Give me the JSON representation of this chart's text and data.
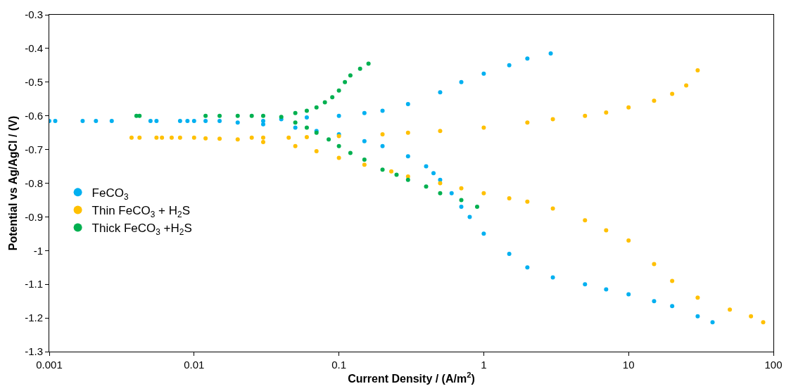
{
  "chart_data": {
    "type": "scatter",
    "xlabel": "Current Density / (A/m$^{2}$)",
    "ylabel": "Potential vs Ag/AgCl / (V)",
    "log": "x",
    "xlim": [
      0.001,
      100
    ],
    "xticks": [
      0.001,
      0.01,
      0.1,
      1,
      10,
      100
    ],
    "ylim": [
      -1.3,
      -0.3
    ],
    "yticks": [
      -1.3,
      -1.2,
      -1.1,
      -1,
      -0.9,
      -0.8,
      -0.7,
      -0.6,
      -0.5,
      -0.4,
      -0.3
    ],
    "grid": false,
    "legend": "left",
    "marker": "circle",
    "series": [
      {
        "name": "FeCO$_{3}$",
        "color": "#00b0f0",
        "x": [
          0.001,
          0.0011,
          0.0017,
          0.0021,
          0.0027,
          0.005,
          0.0055,
          0.008,
          0.009,
          0.01,
          0.012,
          0.015,
          0.02,
          0.03,
          0.05,
          0.07,
          0.1,
          0.15,
          0.2,
          0.3,
          0.4,
          0.45,
          0.5,
          0.6,
          0.7,
          0.8,
          1,
          1.5,
          2,
          3,
          5,
          7,
          10,
          15,
          20,
          30,
          38,
          0.03,
          0.04,
          0.06,
          0.1,
          0.15,
          0.2,
          0.3,
          0.5,
          0.7,
          1,
          1.5,
          2,
          2.9
        ],
        "values": [
          -0.615,
          -0.615,
          -0.615,
          -0.615,
          -0.615,
          -0.615,
          -0.615,
          -0.615,
          -0.615,
          -0.615,
          -0.615,
          -0.615,
          -0.62,
          -0.625,
          -0.635,
          -0.645,
          -0.655,
          -0.675,
          -0.69,
          -0.72,
          -0.75,
          -0.77,
          -0.79,
          -0.83,
          -0.87,
          -0.9,
          -0.95,
          -1.01,
          -1.05,
          -1.08,
          -1.1,
          -1.115,
          -1.13,
          -1.15,
          -1.165,
          -1.195,
          -1.213,
          -0.615,
          -0.61,
          -0.605,
          -0.6,
          -0.592,
          -0.585,
          -0.565,
          -0.53,
          -0.5,
          -0.475,
          -0.45,
          -0.43,
          -0.415
        ]
      },
      {
        "name": "Thin FeCO$_{3}$ + H$_{2}$S",
        "color": "#ffc000",
        "x": [
          0.0037,
          0.0042,
          0.0055,
          0.006,
          0.007,
          0.008,
          0.01,
          0.012,
          0.015,
          0.02,
          0.03,
          0.05,
          0.07,
          0.1,
          0.15,
          0.23,
          0.3,
          0.5,
          0.7,
          1,
          1.5,
          2,
          3,
          5,
          7,
          10,
          15,
          20,
          30,
          50,
          70,
          85,
          0.025,
          0.03,
          0.045,
          0.06,
          0.1,
          0.2,
          0.3,
          0.5,
          1,
          2,
          3,
          5,
          7,
          10,
          15,
          20,
          25,
          30
        ],
        "values": [
          -0.665,
          -0.665,
          -0.665,
          -0.665,
          -0.665,
          -0.665,
          -0.665,
          -0.667,
          -0.668,
          -0.67,
          -0.678,
          -0.69,
          -0.705,
          -0.725,
          -0.745,
          -0.765,
          -0.78,
          -0.8,
          -0.815,
          -0.83,
          -0.845,
          -0.855,
          -0.875,
          -0.91,
          -0.94,
          -0.97,
          -1.04,
          -1.09,
          -1.14,
          -1.175,
          -1.195,
          -1.213,
          -0.665,
          -0.665,
          -0.665,
          -0.663,
          -0.66,
          -0.655,
          -0.65,
          -0.645,
          -0.635,
          -0.62,
          -0.61,
          -0.6,
          -0.59,
          -0.575,
          -0.555,
          -0.535,
          -0.51,
          -0.465
        ]
      },
      {
        "name": "Thick FeCO$_{3}$ +H$_{2}$S",
        "color": "#00b050",
        "x": [
          0.004,
          0.0042,
          0.012,
          0.015,
          0.02,
          0.025,
          0.03,
          0.04,
          0.05,
          0.06,
          0.07,
          0.085,
          0.1,
          0.12,
          0.15,
          0.2,
          0.25,
          0.3,
          0.4,
          0.5,
          0.7,
          0.9,
          0.05,
          0.06,
          0.07,
          0.08,
          0.09,
          0.1,
          0.11,
          0.12,
          0.14,
          0.16
        ],
        "values": [
          -0.6,
          -0.6,
          -0.6,
          -0.6,
          -0.6,
          -0.6,
          -0.6,
          -0.603,
          -0.62,
          -0.635,
          -0.65,
          -0.67,
          -0.69,
          -0.71,
          -0.73,
          -0.76,
          -0.775,
          -0.79,
          -0.81,
          -0.83,
          -0.85,
          -0.87,
          -0.592,
          -0.585,
          -0.575,
          -0.56,
          -0.545,
          -0.525,
          -0.5,
          -0.48,
          -0.46,
          -0.445
        ]
      }
    ]
  }
}
